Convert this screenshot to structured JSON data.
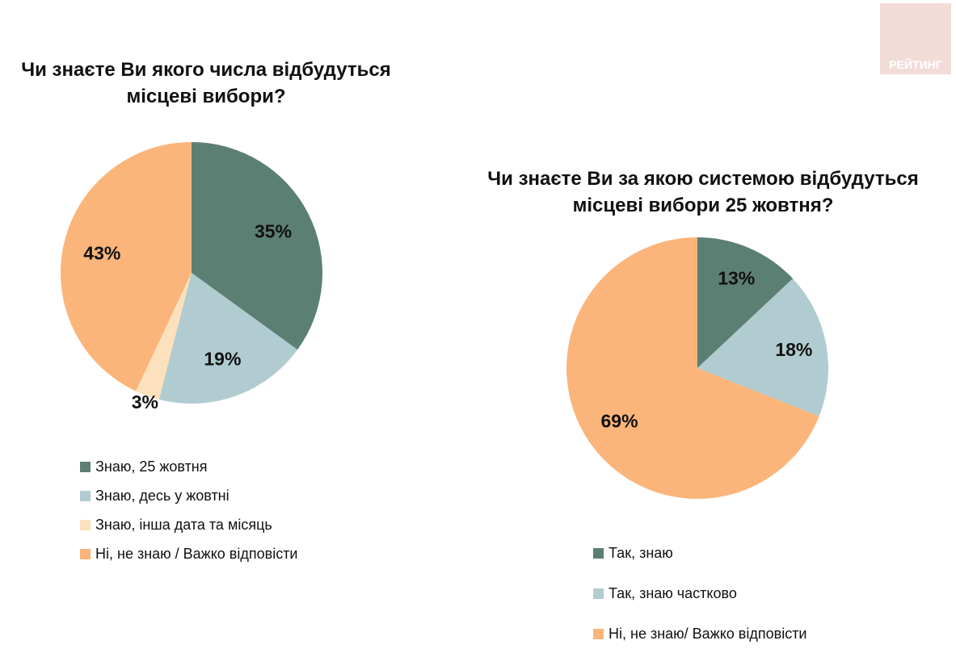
{
  "logo": {
    "text": "РЕЙТИНГ"
  },
  "chart_data": [
    {
      "type": "pie",
      "title": "Чи знаєте Ви якого числа відбудуться місцеві вибори?",
      "labels": [
        "Знаю, 25 жовтня",
        "Знаю, десь у жовтні",
        "Знаю, інша дата та місяць",
        "Ні, не знаю / Важко відповісти"
      ],
      "values": [
        35,
        19,
        3,
        43
      ],
      "data_labels": [
        "35%",
        "19%",
        "3%",
        "43%"
      ],
      "colors": [
        "#5c7f74",
        "#b1ccd0",
        "#fde0bc",
        "#fbb57a"
      ],
      "legend": "bottom"
    },
    {
      "type": "pie",
      "title": "Чи знаєте Ви за якою системою відбудуться місцеві вибори 25 жовтня?",
      "labels": [
        "Так, знаю",
        "Так, знаю частково",
        "Ні, не знаю/ Важко відповісти"
      ],
      "values": [
        13,
        18,
        69
      ],
      "data_labels": [
        "13%",
        "18%",
        "69%"
      ],
      "colors": [
        "#5c7f74",
        "#b1ccd0",
        "#fbb57a"
      ],
      "legend": "bottom"
    }
  ]
}
